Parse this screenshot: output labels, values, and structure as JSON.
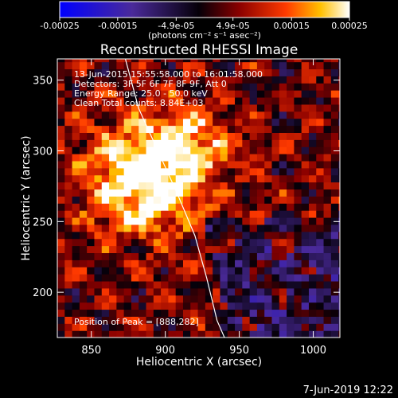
{
  "colorbar": {
    "ticks": [
      "-0.00025",
      "-0.00015",
      "-4.9e-05",
      "4.9e-05",
      "0.00015",
      "0.00025"
    ],
    "unit_label": "(photons cm⁻² s⁻¹ asec⁻²)",
    "range": [
      -0.00025,
      0.00025
    ],
    "colors": [
      "#0000ff",
      "#3a1a8a",
      "#000000",
      "#7a0000",
      "#ff2a00",
      "#ffb000",
      "#ffffff"
    ]
  },
  "chart_data": {
    "type": "heatmap",
    "title": "Reconstructed RHESSI Image",
    "xlabel": "Heliocentric X (arcsec)",
    "ylabel": "Heliocentric Y (arcsec)",
    "xlim": [
      827,
      1018
    ],
    "ylim": [
      168,
      365
    ],
    "x_ticks": [
      850,
      900,
      950,
      1000
    ],
    "y_ticks": [
      200,
      250,
      300,
      350
    ],
    "annotations": [
      "13-Jun-2015 15:55:58.000 to 16:01:58.000",
      "Detectors: 3F 5F 6F 7F 8F 9F, Att 0",
      "Energy Range: 25.0 - 50.0 keV",
      "Clean      Total counts: 8.84E+03"
    ],
    "peak_label": "Position of Peak = [888,282]",
    "peak": [
      888,
      282
    ],
    "limb_curve": [
      [
        873,
        365
      ],
      [
        882,
        330
      ],
      [
        895,
        300
      ],
      [
        908,
        270
      ],
      [
        920,
        240
      ],
      [
        928,
        210
      ],
      [
        935,
        180
      ],
      [
        940,
        168
      ]
    ]
  },
  "footer": {
    "date": "7-Jun-2019 12:22"
  }
}
